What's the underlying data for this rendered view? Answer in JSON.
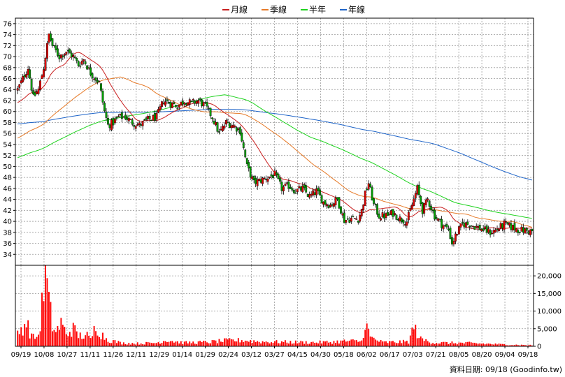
{
  "chart_data": {
    "type": "candlestick",
    "legend": [
      {
        "label": "月線",
        "color": "#c81e1e"
      },
      {
        "label": "季線",
        "color": "#e67a28"
      },
      {
        "label": "半年",
        "color": "#1ed21e"
      },
      {
        "label": "年線",
        "color": "#1e64c8"
      }
    ],
    "x_tick_labels": [
      "09/19",
      "10/08",
      "10/27",
      "11/11",
      "11/26",
      "12/11",
      "12/29",
      "01/14",
      "01/29",
      "02/24",
      "03/12",
      "03/27",
      "04/15",
      "04/30",
      "05/18",
      "06/02",
      "06/17",
      "07/03",
      "07/21",
      "08/05",
      "08/20",
      "09/04",
      "09/18"
    ],
    "price_axis": {
      "min": 32,
      "max": 77,
      "ticks": [
        34,
        36,
        38,
        40,
        42,
        44,
        46,
        48,
        50,
        52,
        54,
        56,
        58,
        60,
        62,
        64,
        66,
        68,
        70,
        72,
        74,
        76
      ]
    },
    "volume_axis": {
      "min": 0,
      "max": 23000,
      "ticks": [
        "0",
        "5,000",
        "10,000",
        "15,000",
        "20,000"
      ],
      "tick_values": [
        0,
        5000,
        10000,
        15000,
        20000
      ]
    },
    "price_anchors": [
      [
        0,
        64
      ],
      [
        3,
        66
      ],
      [
        6,
        68
      ],
      [
        9,
        62.5
      ],
      [
        12,
        64
      ],
      [
        15,
        68
      ],
      [
        18,
        74
      ],
      [
        20,
        72
      ],
      [
        24,
        70
      ],
      [
        28,
        71
      ],
      [
        32,
        70
      ],
      [
        35,
        68.5
      ],
      [
        38,
        69.5
      ],
      [
        42,
        67
      ],
      [
        45,
        66
      ],
      [
        47,
        65.2
      ],
      [
        50,
        60
      ],
      [
        52,
        57.5
      ],
      [
        55,
        58
      ],
      [
        58,
        59
      ],
      [
        62,
        59
      ],
      [
        66,
        58
      ],
      [
        70,
        57.5
      ],
      [
        75,
        58.5
      ],
      [
        80,
        59
      ],
      [
        84,
        62
      ],
      [
        88,
        61.5
      ],
      [
        92,
        61
      ],
      [
        96,
        62
      ],
      [
        100,
        61.5
      ],
      [
        104,
        62
      ],
      [
        108,
        61
      ],
      [
        112,
        59
      ],
      [
        116,
        56
      ],
      [
        120,
        58
      ],
      [
        124,
        57.5
      ],
      [
        128,
        56.5
      ],
      [
        132,
        50
      ],
      [
        136,
        47
      ],
      [
        140,
        47.5
      ],
      [
        144,
        48
      ],
      [
        148,
        48.5
      ],
      [
        152,
        46
      ],
      [
        156,
        46.5
      ],
      [
        160,
        45.5
      ],
      [
        164,
        46
      ],
      [
        168,
        44.5
      ],
      [
        172,
        45.5
      ],
      [
        176,
        43.5
      ],
      [
        180,
        43
      ],
      [
        184,
        44
      ],
      [
        188,
        40.2
      ],
      [
        192,
        40.5
      ],
      [
        196,
        40.5
      ],
      [
        198,
        42
      ],
      [
        200,
        45
      ],
      [
        202,
        47
      ],
      [
        205,
        43
      ],
      [
        208,
        41
      ],
      [
        212,
        41
      ],
      [
        216,
        41.5
      ],
      [
        220,
        40.5
      ],
      [
        224,
        40
      ],
      [
        228,
        44
      ],
      [
        230,
        46
      ],
      [
        233,
        42
      ],
      [
        236,
        44
      ],
      [
        240,
        41
      ],
      [
        244,
        39.5
      ],
      [
        248,
        38.5
      ],
      [
        250,
        36
      ],
      [
        253,
        38
      ],
      [
        256,
        39.5
      ],
      [
        260,
        39.5
      ],
      [
        264,
        39
      ],
      [
        268,
        38.5
      ],
      [
        272,
        38
      ],
      [
        276,
        38.5
      ],
      [
        280,
        39.5
      ],
      [
        284,
        39
      ],
      [
        288,
        38.5
      ],
      [
        292,
        38.3
      ],
      [
        296,
        38.2
      ]
    ],
    "volume_anchors": [
      [
        0,
        3500
      ],
      [
        3,
        5500
      ],
      [
        5,
        7000
      ],
      [
        7,
        4000
      ],
      [
        9,
        2500
      ],
      [
        12,
        3000
      ],
      [
        14,
        11000
      ],
      [
        16,
        22000
      ],
      [
        18,
        12000
      ],
      [
        20,
        6000
      ],
      [
        22,
        4000
      ],
      [
        25,
        6500
      ],
      [
        28,
        3500
      ],
      [
        32,
        5000
      ],
      [
        35,
        3000
      ],
      [
        40,
        3000
      ],
      [
        42,
        1800
      ],
      [
        45,
        6000
      ],
      [
        48,
        3500
      ],
      [
        52,
        1800
      ],
      [
        60,
        900
      ],
      [
        70,
        800
      ],
      [
        80,
        1000
      ],
      [
        86,
        1800
      ],
      [
        95,
        1000
      ],
      [
        110,
        1200
      ],
      [
        120,
        1600
      ],
      [
        130,
        1700
      ],
      [
        140,
        1300
      ],
      [
        155,
        1200
      ],
      [
        170,
        1100
      ],
      [
        180,
        1200
      ],
      [
        190,
        1500
      ],
      [
        198,
        1400
      ],
      [
        200,
        7000
      ],
      [
        203,
        2500
      ],
      [
        210,
        1100
      ],
      [
        225,
        1300
      ],
      [
        228,
        5500
      ],
      [
        232,
        2000
      ],
      [
        240,
        1000
      ],
      [
        260,
        900
      ],
      [
        280,
        500
      ],
      [
        296,
        300
      ]
    ],
    "ma": {
      "monthly": 20,
      "quarterly": 60,
      "half_year": 120,
      "yearly": 240
    },
    "ma_prehistory": {
      "yearly_start": 57.7,
      "half_year_start": 51.5,
      "quarterly_start": 55.0,
      "monthly_start": 61.5
    },
    "source_label": "資料日期: 09/18  (Goodinfo.tw)",
    "grid": true
  }
}
